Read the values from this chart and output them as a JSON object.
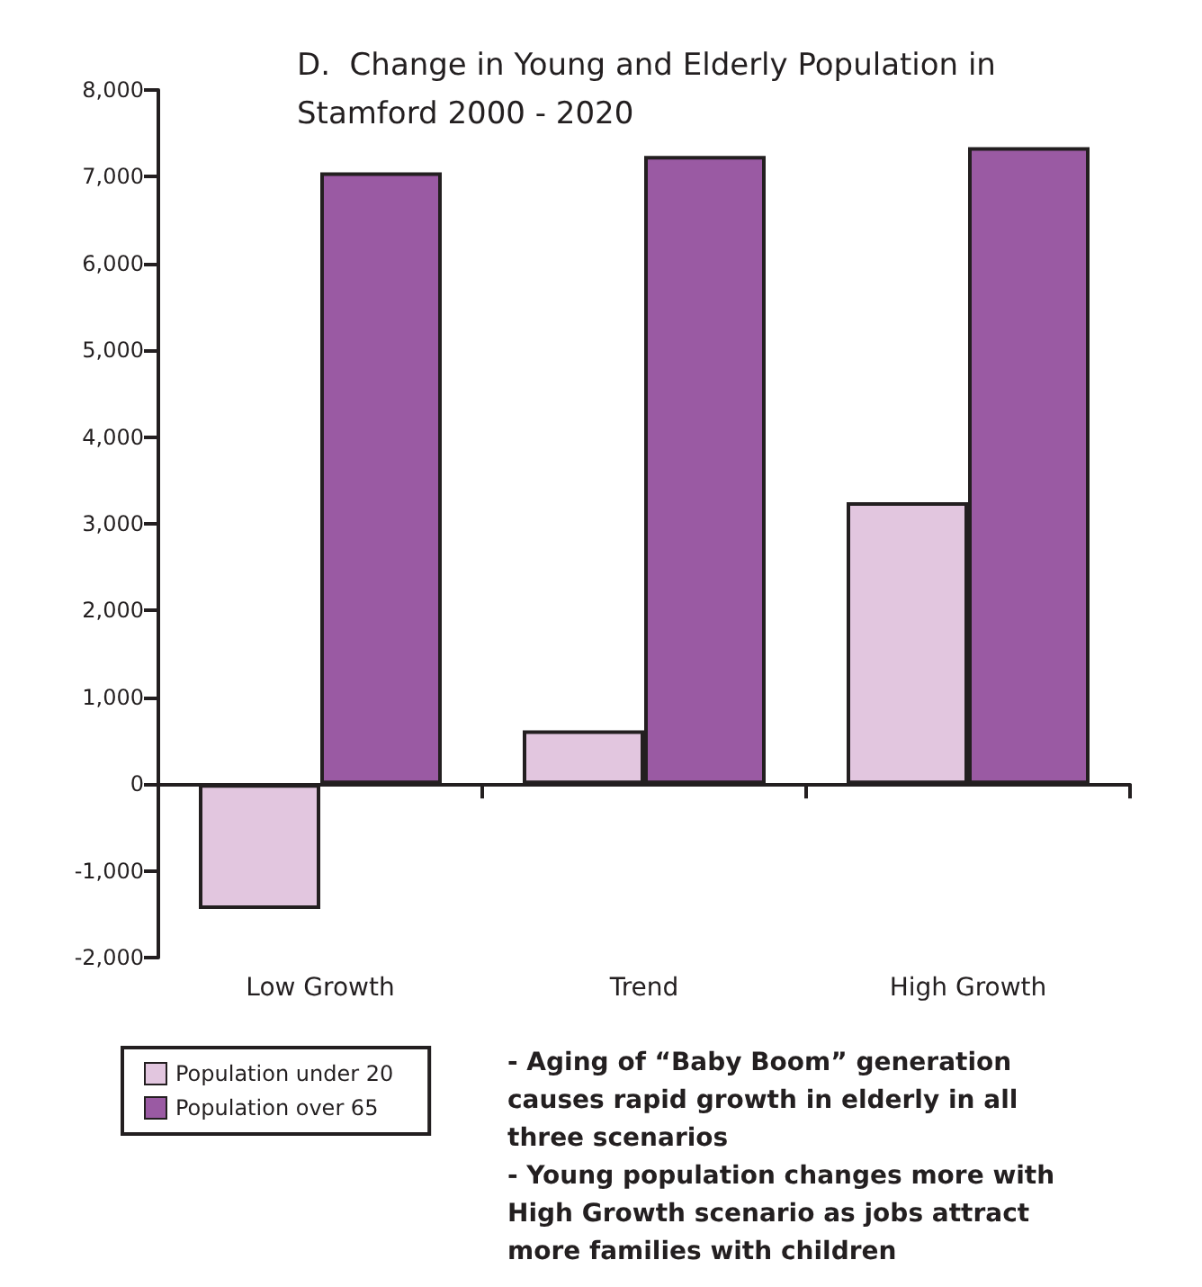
{
  "chart_data": {
    "type": "bar",
    "title": "D.  Change in Young and Elderly Population in Stamford 2000 - 2020",
    "categories": [
      "Low Growth",
      "Trend",
      "High Growth"
    ],
    "series": [
      {
        "name": "Population under 20",
        "color": "#e2c6df",
        "values": [
          -1440,
          620,
          3250
        ]
      },
      {
        "name": "Population over 65",
        "color": "#9a5aa3",
        "values": [
          7050,
          7240,
          7340
        ]
      }
    ],
    "ylim": [
      -2000,
      8000
    ],
    "yticks": [
      {
        "value": -2000,
        "label": "-2,000"
      },
      {
        "value": -1000,
        "label": "-1,000"
      },
      {
        "value": 0,
        "label": "0"
      },
      {
        "value": 1000,
        "label": "1,000"
      },
      {
        "value": 2000,
        "label": "2,000"
      },
      {
        "value": 3000,
        "label": "3,000"
      },
      {
        "value": 4000,
        "label": "4,000"
      },
      {
        "value": 5000,
        "label": "5,000"
      },
      {
        "value": 6000,
        "label": "6,000"
      },
      {
        "value": 7000,
        "label": "7,000"
      },
      {
        "value": 8000,
        "label": "8,000"
      }
    ],
    "legend": "bottom left",
    "annotations": [
      "- Aging of “Baby Boom” generation causes rapid growth in elderly in all three scenarios",
      "- Young population changes more with High Growth scenario as jobs attract more families with children"
    ]
  }
}
